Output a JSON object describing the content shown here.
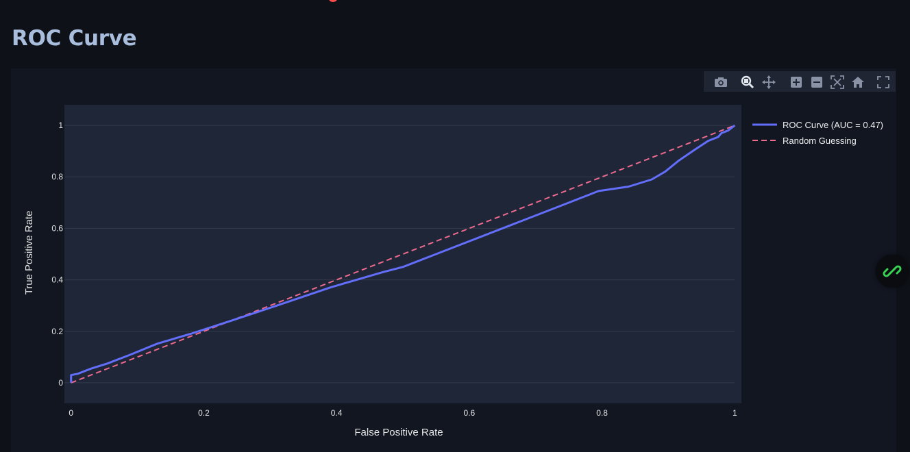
{
  "page": {
    "title": "ROC Curve"
  },
  "modebar": {
    "buttons": [
      {
        "name": "camera-icon",
        "tooltip": "Download plot as a png"
      },
      {
        "name": "zoom-icon",
        "tooltip": "Zoom"
      },
      {
        "name": "pan-icon",
        "tooltip": "Pan"
      },
      {
        "name": "zoom-in-icon",
        "tooltip": "Zoom in"
      },
      {
        "name": "zoom-out-icon",
        "tooltip": "Zoom out"
      },
      {
        "name": "autoscale-icon",
        "tooltip": "Autoscale"
      },
      {
        "name": "home-icon",
        "tooltip": "Reset axes"
      },
      {
        "name": "fullscreen-icon",
        "tooltip": "View fullscreen"
      }
    ]
  },
  "chart_data": {
    "type": "line",
    "title": "",
    "xlabel": "False Positive Rate",
    "ylabel": "True Positive Rate",
    "xlim": [
      -0.01,
      1.01
    ],
    "ylim": [
      -0.08,
      1.08
    ],
    "xticks": [
      0,
      0.2,
      0.4,
      0.6,
      0.8,
      1
    ],
    "xtick_labels": [
      "0",
      "0.2",
      "0.4",
      "0.6",
      "0.8",
      "1"
    ],
    "yticks": [
      0,
      0.2,
      0.4,
      0.6,
      0.8,
      1
    ],
    "ytick_labels": [
      "0",
      "0.2",
      "0.4",
      "0.6",
      "0.8",
      "1"
    ],
    "grid": true,
    "legend_position": "top-right-outside",
    "colors": {
      "plot_bg": "#1f2638",
      "grid": "#323a4b",
      "roc": "#636efa",
      "random": "#ef6a8f"
    },
    "series": [
      {
        "name": "ROC Curve (AUC = 0.47)",
        "style": "solid",
        "x": [
          0,
          0,
          0.01,
          0.03,
          0.055,
          0.09,
          0.13,
          0.18,
          0.24,
          0.31,
          0.39,
          0.47,
          0.5,
          0.57,
          0.66,
          0.74,
          0.795,
          0.84,
          0.875,
          0.895,
          0.915,
          0.94,
          0.96,
          0.975,
          0.98,
          0.99,
          0.995,
          1
        ],
        "y": [
          0,
          0.03,
          0.035,
          0.055,
          0.075,
          0.11,
          0.152,
          0.19,
          0.24,
          0.3,
          0.37,
          0.43,
          0.45,
          0.52,
          0.61,
          0.69,
          0.745,
          0.762,
          0.79,
          0.82,
          0.862,
          0.906,
          0.94,
          0.955,
          0.97,
          0.98,
          0.99,
          1
        ]
      },
      {
        "name": "Random Guessing",
        "style": "dashed",
        "x": [
          0,
          1
        ],
        "y": [
          0,
          1
        ]
      }
    ]
  }
}
